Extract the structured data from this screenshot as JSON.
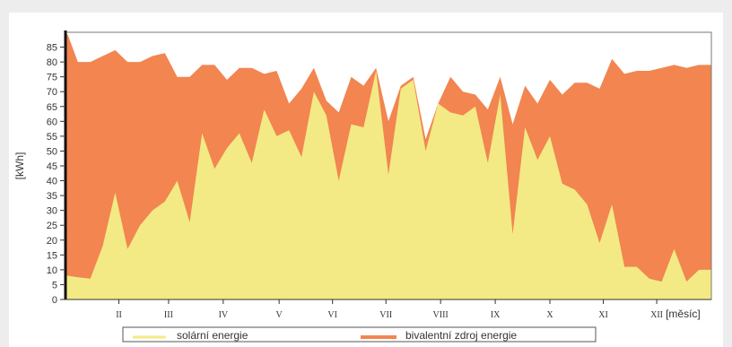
{
  "chart_data": {
    "type": "area",
    "ylabel": "[kWh]",
    "xlabel": "[měsíc]",
    "ylim": [
      0,
      90
    ],
    "yticks": [
      0,
      5,
      10,
      15,
      20,
      25,
      30,
      35,
      40,
      45,
      50,
      55,
      60,
      65,
      70,
      75,
      80,
      85
    ],
    "xlim": [
      0,
      52
    ],
    "month_ticks": [
      {
        "label": "II",
        "x": 4.3
      },
      {
        "label": "III",
        "x": 8.3
      },
      {
        "label": "IV",
        "x": 12.7
      },
      {
        "label": "V",
        "x": 17.2
      },
      {
        "label": "VI",
        "x": 21.5
      },
      {
        "label": "VII",
        "x": 25.8
      },
      {
        "label": "VIII",
        "x": 30.2
      },
      {
        "label": "IX",
        "x": 34.6
      },
      {
        "label": "X",
        "x": 39.0
      },
      {
        "label": "XI",
        "x": 43.3
      },
      {
        "label": "XII",
        "x": 47.6
      }
    ],
    "colors": {
      "solar": "#f3ea85",
      "bivalent": "#f28550"
    },
    "series": [
      {
        "name": "solární energie",
        "x": [
          0,
          0.2,
          1,
          2,
          3,
          4,
          5,
          6,
          7,
          8,
          9,
          10,
          11,
          12,
          13,
          14,
          15,
          16,
          17,
          18,
          19,
          20,
          21,
          22,
          23,
          24,
          25,
          26,
          27,
          28,
          29,
          30,
          31,
          32,
          33,
          34,
          35,
          36,
          37,
          38,
          39,
          40,
          41,
          42,
          43,
          44,
          45,
          46,
          47,
          48,
          49,
          50,
          51,
          52
        ],
        "values": [
          8,
          8,
          7.5,
          7,
          18,
          36,
          17,
          25,
          30,
          33,
          40,
          26,
          56,
          44,
          51,
          56,
          46,
          64,
          55,
          57,
          48,
          70,
          62,
          40,
          59,
          58,
          77,
          42,
          71,
          74,
          50,
          66,
          63,
          62,
          65,
          46,
          69,
          22,
          58,
          47,
          55,
          39,
          37,
          32,
          19,
          32,
          11,
          11,
          7,
          6,
          17,
          6,
          10,
          10
        ]
      },
      {
        "name": "bivalentní zdroj energie",
        "x": [
          0,
          0.2,
          1,
          2,
          3,
          4,
          5,
          6,
          7,
          8,
          9,
          10,
          11,
          12,
          13,
          14,
          15,
          16,
          17,
          18,
          19,
          20,
          21,
          22,
          23,
          24,
          25,
          26,
          27,
          28,
          29,
          30,
          31,
          32,
          33,
          34,
          35,
          36,
          37,
          38,
          39,
          40,
          41,
          42,
          43,
          44,
          45,
          46,
          47,
          48,
          49,
          50,
          51,
          52
        ],
        "values": [
          90,
          89,
          80,
          80,
          82,
          84,
          80,
          80,
          82,
          83,
          75,
          75,
          79,
          79,
          74,
          78,
          78,
          76,
          77,
          66,
          71,
          78,
          67,
          63,
          75,
          72,
          78,
          60,
          72,
          75,
          54,
          66,
          75,
          70,
          69,
          64,
          75,
          59,
          72,
          66,
          74,
          69,
          73,
          73,
          71,
          81,
          76,
          77,
          77,
          78,
          79,
          78,
          79,
          79
        ]
      }
    ]
  }
}
